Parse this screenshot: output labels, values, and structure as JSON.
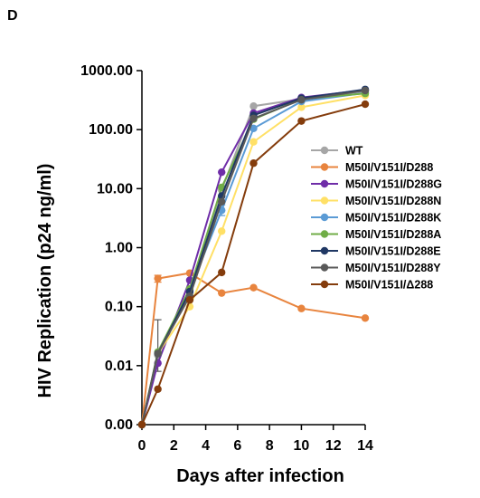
{
  "panel_label": "D",
  "chart_data": {
    "type": "line",
    "xlabel": "Days after infection",
    "ylabel": "HIV Replication (p24 ng/ml)",
    "x_scale": "linear",
    "y_scale": "log",
    "xlim": [
      0,
      14
    ],
    "ylim": [
      0.001,
      1000
    ],
    "x_ticks": [
      0,
      2,
      4,
      6,
      8,
      10,
      12,
      14
    ],
    "x_tick_labels": [
      "0",
      "2",
      "4",
      "6",
      "8",
      "10",
      "12",
      "14"
    ],
    "y_ticks": [
      0.001,
      0.01,
      0.1,
      1,
      10,
      100,
      1000
    ],
    "y_tick_labels": [
      "0.00",
      "0.01",
      "0.10",
      "1.00",
      "10.00",
      "100.00",
      "1000.00"
    ],
    "grid": false,
    "legend_position": "right",
    "series": [
      {
        "name": "WT",
        "color": "#a6a6a6",
        "x": [
          0,
          1,
          3,
          5,
          7,
          10,
          14
        ],
        "y": [
          0.001,
          0.015,
          0.17,
          9.5,
          250,
          330,
          450
        ]
      },
      {
        "name": "M50I/V151I/D288",
        "color": "#e8843e",
        "x": [
          0,
          1,
          3,
          5,
          7,
          10,
          14
        ],
        "y": [
          0.001,
          0.3,
          0.37,
          0.17,
          0.21,
          0.093,
          0.064
        ],
        "error_bars": [
          {
            "x": 1,
            "low": 0.26,
            "high": 0.34
          }
        ]
      },
      {
        "name": "M50I/V151I/D288G",
        "color": "#6f2da8",
        "x": [
          0,
          1,
          3,
          5,
          7,
          10,
          14
        ],
        "y": [
          0.001,
          0.011,
          0.28,
          19,
          190,
          350,
          470
        ]
      },
      {
        "name": "M50I/V151I/D288N",
        "color": "#ffe066",
        "x": [
          0,
          1,
          3,
          5,
          7,
          10,
          14
        ],
        "y": [
          0.001,
          0.016,
          0.1,
          1.9,
          62,
          240,
          380
        ]
      },
      {
        "name": "M50I/V151I/D288K",
        "color": "#5b9bd5",
        "x": [
          0,
          1,
          3,
          5,
          7,
          10,
          14
        ],
        "y": [
          0.001,
          0.016,
          0.19,
          4.3,
          105,
          300,
          420
        ],
        "error_bars": [
          {
            "x": 5,
            "low": 3.5,
            "high": 5.3
          }
        ]
      },
      {
        "name": "M50I/V151I/D288A",
        "color": "#70ad47",
        "x": [
          0,
          1,
          3,
          5,
          7,
          10,
          14
        ],
        "y": [
          0.001,
          0.017,
          0.2,
          10.5,
          150,
          330,
          410
        ]
      },
      {
        "name": "M50I/V151I/D288E",
        "color": "#203864",
        "x": [
          0,
          1,
          3,
          5,
          7,
          10,
          14
        ],
        "y": [
          0.001,
          0.016,
          0.18,
          7.5,
          175,
          340,
          480
        ]
      },
      {
        "name": "M50I/V151I/D288Y",
        "color": "#595959",
        "x": [
          0,
          1,
          3,
          5,
          7,
          10,
          14
        ],
        "y": [
          0.001,
          0.016,
          0.15,
          6,
          155,
          320,
          460
        ],
        "error_bars": [
          {
            "x": 1,
            "low": 0.008,
            "high": 0.06
          }
        ]
      },
      {
        "name": "M50I/V151I/Δ288",
        "color": "#843c0c",
        "x": [
          0,
          1,
          3,
          5,
          7,
          10,
          14
        ],
        "y": [
          0.001,
          0.004,
          0.13,
          0.38,
          27,
          140,
          270
        ]
      }
    ]
  }
}
